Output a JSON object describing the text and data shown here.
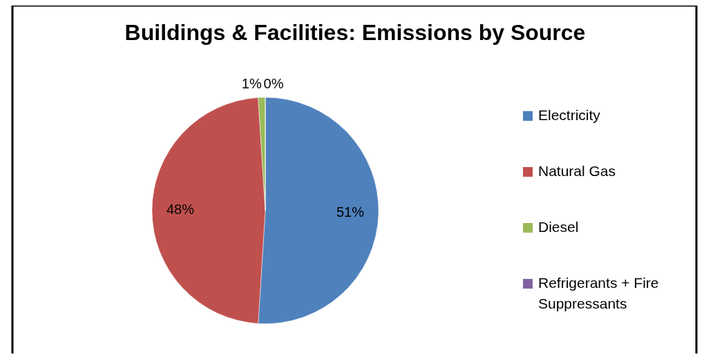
{
  "chart_data": {
    "type": "pie",
    "title": "Buildings & Facilities: Emissions by Source",
    "categories": [
      "Electricity",
      "Natural Gas",
      "Diesel",
      "Refrigerants + Fire Suppressants"
    ],
    "values": [
      51,
      48,
      1,
      0
    ],
    "colors": [
      "#4f81bd",
      "#c0504d",
      "#9bbb59",
      "#8064a2"
    ],
    "value_labels": [
      "51%",
      "48%",
      "1%",
      "0%"
    ],
    "legend": "right"
  }
}
